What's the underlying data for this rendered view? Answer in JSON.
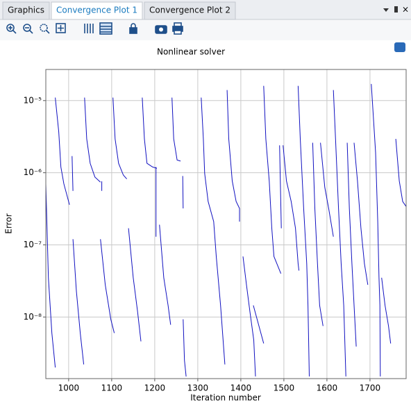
{
  "tabs": [
    "Graphics",
    "Convergence Plot 1",
    "Convergence Plot 2"
  ],
  "active_tab": 1,
  "chart_data": {
    "type": "line",
    "title": "Nonlinear solver",
    "xlabel": "Iteration number",
    "ylabel": "Error",
    "log_y": true,
    "grid": true,
    "xlim": [
      947,
      1784
    ],
    "ylim": [
      1.4e-09,
      2.7e-05
    ],
    "xticks": [
      1000,
      1100,
      1200,
      1300,
      1400,
      1500,
      1600,
      1700
    ],
    "yticks": [
      {
        "value": 1e-08,
        "label": "10⁻⁸"
      },
      {
        "value": 1e-07,
        "label": "10⁻⁷"
      },
      {
        "value": 1e-06,
        "label": "10⁻⁶"
      },
      {
        "value": 1e-05,
        "label": "10⁻⁵"
      }
    ],
    "series": [
      {
        "color": "#1010c0",
        "x": [
          947,
          953,
          961,
          969,
          null,
          969,
          977,
          982,
          989,
          1002,
          null,
          1008,
          1010,
          null,
          1010,
          1018,
          1027,
          1035,
          null,
          1037,
          1042,
          1050,
          1061,
          1074,
          null,
          1077,
          1077,
          null,
          1074,
          1085,
          1098,
          1106,
          null,
          1103,
          1108,
          1116,
          1127,
          1135,
          null,
          1139,
          1150,
          1160,
          1168,
          null,
          1171,
          1176,
          1182,
          1195,
          1205,
          null,
          1203,
          1203,
          null,
          1211,
          1221,
          1231,
          1237,
          null,
          1240,
          1244,
          1252,
          1260,
          null,
          1265,
          1266,
          null,
          1266,
          1269,
          1273,
          null,
          1308,
          1313,
          1316,
          1324,
          1337,
          1343,
          1353,
          1363,
          null,
          1368,
          1372,
          1380,
          1389,
          1397,
          1397,
          null,
          1405,
          1413,
          1421,
          1430,
          1434,
          null,
          1429,
          1453,
          null,
          1453,
          1458,
          1466,
          1472,
          1477,
          1493,
          null,
          1490,
          1494,
          null,
          1498,
          1506,
          1517,
          1527,
          1533,
          1535,
          null,
          1533,
          1538,
          1546,
          1553,
          1556,
          1559,
          null,
          1567,
          1572,
          1578,
          1583,
          1591,
          null,
          1585,
          1595,
          1604,
          1615,
          null,
          1615,
          1620,
          1627,
          1633,
          1639,
          1644,
          null,
          1647,
          1652,
          1658,
          1663,
          1668,
          null,
          1663,
          1671,
          1679,
          1687,
          1695,
          null,
          1703,
          1708,
          1713,
          1718,
          1721,
          1723,
          1724,
          null,
          1727,
          1735,
          1743,
          1748,
          null,
          1760,
          1768,
          1776,
          1784
        ],
        "values": [
          7e-07,
          3.5e-08,
          6e-09,
          2e-09,
          null,
          1.1e-05,
          3.7e-06,
          1.2e-06,
          7e-07,
          3.6e-07,
          null,
          1.7e-06,
          5.6e-07,
          null,
          1.2e-07,
          2.3e-08,
          6e-09,
          2.2e-09,
          null,
          1.1e-05,
          2.95e-06,
          1.35e-06,
          8.7e-07,
          7.4e-07,
          null,
          7.6e-07,
          5.6e-07,
          null,
          1.2e-07,
          2.8e-08,
          9.3e-09,
          6e-09,
          null,
          1.1e-05,
          2.95e-06,
          1.35e-06,
          9.3e-07,
          8.2e-07,
          null,
          1.7e-07,
          3.5e-08,
          1.2e-08,
          4.6e-09,
          null,
          1.1e-05,
          2.95e-06,
          1.35e-06,
          1.2e-06,
          1.15e-06,
          null,
          1.2e-06,
          1.3e-07,
          null,
          1.9e-07,
          3.5e-08,
          1.45e-08,
          7.8e-09,
          null,
          1.1e-05,
          2.95e-06,
          1.5e-06,
          1.45e-06,
          null,
          9e-07,
          3.2e-07,
          null,
          9.3e-09,
          2.5e-09,
          1.5e-09,
          null,
          1.1e-05,
          2.95e-06,
          9.8e-07,
          4e-07,
          2.1e-07,
          6.9e-08,
          1.45e-08,
          2.2e-09,
          null,
          1.4e-05,
          2.95e-06,
          7.7e-07,
          4e-07,
          3.2e-07,
          2.1e-07,
          null,
          6.9e-08,
          2.8e-08,
          1.2e-08,
          4.8e-09,
          1.5e-09,
          null,
          1.45e-08,
          4.3e-09,
          null,
          1.6e-05,
          2.95e-06,
          7.7e-07,
          1.7e-07,
          6.9e-08,
          4e-08,
          null,
          2.4e-06,
          1.7e-07,
          null,
          2.4e-06,
          7.7e-07,
          4e-07,
          1.7e-07,
          5.5e-08,
          4.4e-08,
          null,
          1.6e-05,
          2.95e-06,
          3.2e-07,
          5.5e-08,
          1.45e-08,
          1.5e-09,
          null,
          2.6e-06,
          3.2e-07,
          5.5e-08,
          1.45e-08,
          7.5e-09,
          null,
          2.6e-06,
          6.3e-07,
          3.2e-07,
          1.3e-07,
          null,
          1.4e-05,
          2.95e-06,
          3.2e-07,
          5.5e-08,
          1.45e-08,
          1.5e-09,
          null,
          2.6e-06,
          3.2e-07,
          5.5e-08,
          1.45e-08,
          3.9e-09,
          null,
          2.6e-06,
          7.7e-07,
          1.7e-07,
          5.5e-08,
          2.8e-08,
          null,
          1.7e-05,
          5.7e-06,
          1.9e-06,
          2.1e-07,
          3.5e-08,
          1.45e-08,
          1.5e-09,
          null,
          3.5e-08,
          1.45e-08,
          7.5e-09,
          4.3e-09,
          null,
          2.95e-06,
          7.7e-07,
          4e-07,
          3.4e-07
        ]
      }
    ]
  }
}
